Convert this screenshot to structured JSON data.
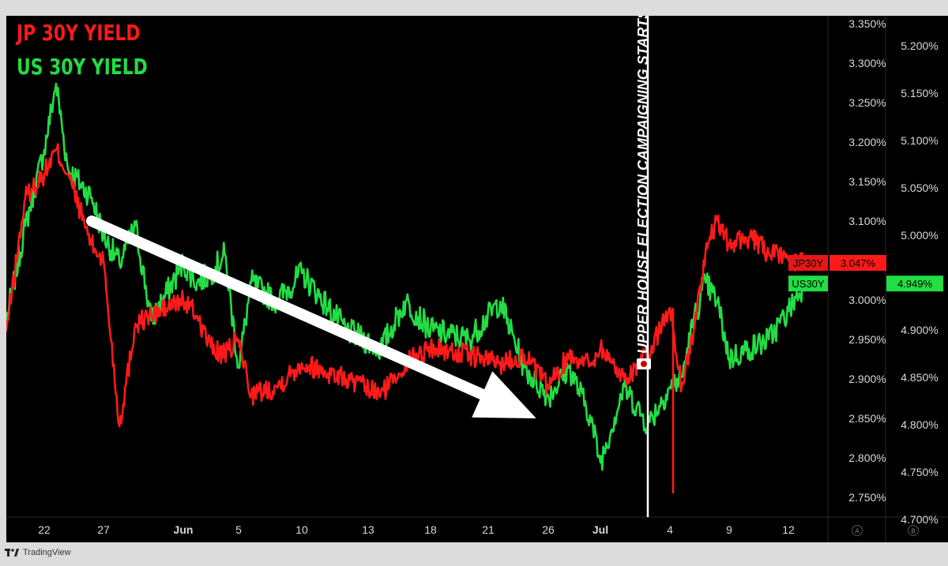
{
  "chart_data": {
    "type": "line",
    "title": "",
    "legend": [
      "JP 30Y YIELD",
      "US 30Y YIELD"
    ],
    "x_ticks": [
      "22",
      "27",
      "Jun",
      "5",
      "10",
      "13",
      "18",
      "21",
      "26",
      "Jul",
      "4",
      "9",
      "12"
    ],
    "y_axis_left": {
      "ticks": [
        "3.350%",
        "3.300%",
        "3.250%",
        "3.200%",
        "3.150%",
        "3.100%",
        "3.050%",
        "3.000%",
        "2.950%",
        "2.900%",
        "2.850%",
        "2.800%",
        "2.750%"
      ],
      "range": [
        2.73,
        3.355
      ]
    },
    "y_axis_right": {
      "ticks": [
        "5.200%",
        "5.150%",
        "5.100%",
        "5.050%",
        "5.000%",
        "4.950%",
        "4.900%",
        "4.850%",
        "4.800%",
        "4.750%",
        "4.700%"
      ],
      "range": [
        4.695,
        5.22
      ]
    },
    "axis_corner_labels": [
      "A",
      "B"
    ],
    "annotation": {
      "text": "UPPER HOUSE ELECTION CAMPAIGNING STARTS",
      "flag": "japan-flag",
      "x_date": "Jul 3"
    },
    "series": [
      {
        "name": "JP30Y",
        "axis": "left",
        "color": "#ff1a1a",
        "last_value": "3.047%",
        "points": [
          [
            "May 20",
            2.96
          ],
          [
            "May 21",
            3.13
          ],
          [
            "May 22",
            3.16
          ],
          [
            "May 23",
            3.19
          ],
          [
            "May 24",
            3.16
          ],
          [
            "May 26",
            3.07
          ],
          [
            "May 27",
            3.05
          ],
          [
            "May 28",
            2.84
          ],
          [
            "May 29",
            2.97
          ],
          [
            "May 30",
            2.98
          ],
          [
            "Jun 1",
            3.0
          ],
          [
            "Jun 2",
            2.98
          ],
          [
            "Jun 3",
            2.94
          ],
          [
            "Jun 4",
            2.93
          ],
          [
            "Jun 5",
            2.95
          ],
          [
            "Jun 6",
            2.88
          ],
          [
            "Jun 8",
            2.89
          ],
          [
            "Jun 10",
            2.92
          ],
          [
            "Jun 12",
            2.9
          ],
          [
            "Jun 14",
            2.88
          ],
          [
            "Jun 16",
            2.92
          ],
          [
            "Jun 18",
            2.94
          ],
          [
            "Jun 20",
            2.93
          ],
          [
            "Jun 22",
            2.92
          ],
          [
            "Jun 24",
            2.93
          ],
          [
            "Jun 26",
            2.89
          ],
          [
            "Jun 28",
            2.93
          ],
          [
            "Jun 30",
            2.92
          ],
          [
            "Jul 1",
            2.94
          ],
          [
            "Jul 2",
            2.9
          ],
          [
            "Jul 3",
            2.93
          ],
          [
            "Jul 4",
            2.99
          ],
          [
            "Jul 5",
            2.89
          ],
          [
            "Jul 6",
            2.96
          ],
          [
            "Jul 7",
            3.06
          ],
          [
            "Jul 8",
            3.1
          ],
          [
            "Jul 9",
            3.07
          ],
          [
            "Jul 10",
            3.08
          ],
          [
            "Jul 11",
            3.06
          ],
          [
            "Jul 12",
            3.05
          ],
          [
            "Jul 13",
            3.047
          ]
        ]
      },
      {
        "name": "US30Y",
        "axis": "right",
        "color": "#22dd44",
        "last_value": "4.949%",
        "points": [
          [
            "May 20",
            4.91
          ],
          [
            "May 21",
            5.01
          ],
          [
            "May 22",
            5.09
          ],
          [
            "May 23",
            5.16
          ],
          [
            "May 24",
            5.07
          ],
          [
            "May 26",
            5.04
          ],
          [
            "May 27",
            5.0
          ],
          [
            "May 28",
            4.97
          ],
          [
            "May 29",
            5.01
          ],
          [
            "May 30",
            4.91
          ],
          [
            "Jun 1",
            4.97
          ],
          [
            "Jun 2",
            4.95
          ],
          [
            "Jun 3",
            4.96
          ],
          [
            "Jun 4",
            4.98
          ],
          [
            "Jun 5",
            4.86
          ],
          [
            "Jun 6",
            4.95
          ],
          [
            "Jun 8",
            4.93
          ],
          [
            "Jun 10",
            4.96
          ],
          [
            "Jun 12",
            4.9
          ],
          [
            "Jun 14",
            4.88
          ],
          [
            "Jun 16",
            4.93
          ],
          [
            "Jun 18",
            4.9
          ],
          [
            "Jun 20",
            4.89
          ],
          [
            "Jun 22",
            4.93
          ],
          [
            "Jun 24",
            4.86
          ],
          [
            "Jun 26",
            4.83
          ],
          [
            "Jun 28",
            4.86
          ],
          [
            "Jun 30",
            4.81
          ],
          [
            "Jul 1",
            4.76
          ],
          [
            "Jul 2",
            4.84
          ],
          [
            "Jul 3",
            4.8
          ],
          [
            "Jul 4",
            4.84
          ],
          [
            "Jul 5",
            4.85
          ],
          [
            "Jul 6",
            4.91
          ],
          [
            "Jul 7",
            4.95
          ],
          [
            "Jul 8",
            4.93
          ],
          [
            "Jul 9",
            4.87
          ],
          [
            "Jul 10",
            4.88
          ],
          [
            "Jul 11",
            4.89
          ],
          [
            "Jul 12",
            4.92
          ],
          [
            "Jul 13",
            4.949
          ]
        ]
      }
    ],
    "trend_arrow": {
      "from": [
        "May 26",
        3.1
      ],
      "to": [
        "Jun 25",
        2.85
      ],
      "color": "#ffffff"
    },
    "grid": false,
    "background": "#000000"
  },
  "footer": {
    "brand": "TradingView"
  }
}
